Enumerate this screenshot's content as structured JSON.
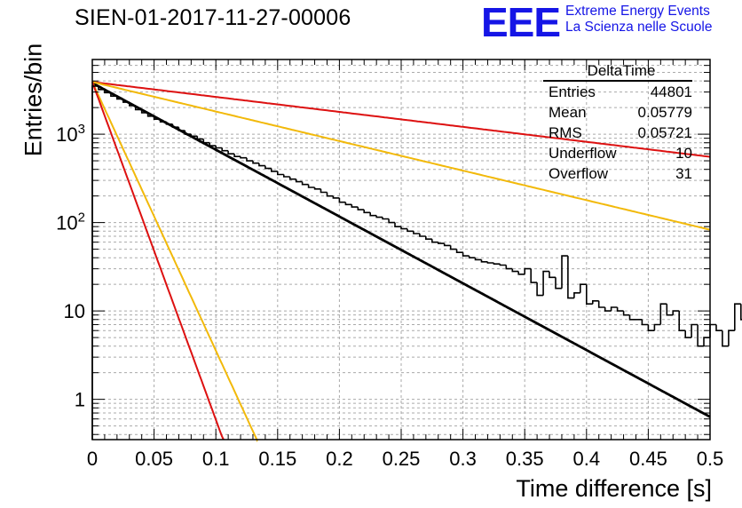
{
  "header": {
    "title": "SIEN-01-2017-11-27-00006",
    "logo_text": "EEE",
    "org_line1": "Extreme Energy Events",
    "org_line2": "La Scienza nelle Scuole",
    "brand_color": "#1515e6"
  },
  "stats": {
    "name": "DeltaTime",
    "rows": [
      {
        "label": "Entries",
        "value": "44801"
      },
      {
        "label": "Mean",
        "value": "0.05779"
      },
      {
        "label": "RMS",
        "value": "0.05721"
      },
      {
        "label": "Underflow",
        "value": "10"
      },
      {
        "label": "Overflow",
        "value": "31"
      }
    ]
  },
  "chart_data": {
    "type": "line",
    "title": "SIEN-01-2017-11-27-00006",
    "xlabel": "Time difference [s]",
    "ylabel": "Entries/bin",
    "xlim": [
      0,
      0.5
    ],
    "ylim": [
      0.35,
      7000
    ],
    "yscale": "log",
    "grid": true,
    "x_ticks": [
      "0",
      "0.05",
      "0.1",
      "0.15",
      "0.2",
      "0.25",
      "0.3",
      "0.35",
      "0.4",
      "0.45",
      "0.5"
    ],
    "y_ticks": [
      {
        "value": 1,
        "label": "1"
      },
      {
        "value": 10,
        "label": "10"
      },
      {
        "value": 100,
        "label": "10^2"
      },
      {
        "value": 1000,
        "label": "10^3"
      }
    ],
    "histogram": {
      "name": "DeltaTime",
      "bin_width": 0.005,
      "color": "#000000",
      "counts": [
        3500,
        3200,
        2950,
        2700,
        2500,
        2300,
        2100,
        1900,
        1750,
        1600,
        1480,
        1380,
        1300,
        1200,
        1100,
        1000,
        950,
        880,
        800,
        740,
        700,
        650,
        600,
        560,
        540,
        500,
        470,
        440,
        410,
        380,
        350,
        330,
        310,
        290,
        270,
        250,
        240,
        220,
        200,
        190,
        170,
        160,
        150,
        140,
        130,
        120,
        115,
        110,
        100,
        90,
        85,
        80,
        75,
        70,
        65,
        60,
        58,
        55,
        50,
        46,
        42,
        40,
        38,
        36,
        35,
        34,
        33,
        30,
        28,
        26,
        30,
        21,
        15,
        28,
        24,
        18,
        42,
        14,
        16,
        20,
        12,
        13,
        11,
        10,
        11,
        10,
        9,
        8,
        8,
        7,
        6,
        7,
        12,
        9,
        10,
        6,
        5,
        7,
        4,
        5,
        7,
        6,
        4,
        6,
        12,
        8,
        4,
        2,
        12,
        5,
        3,
        2,
        3,
        9,
        4,
        6,
        3,
        2,
        2,
        2,
        1,
        7,
        2,
        10,
        2,
        7,
        4,
        4,
        1,
        3,
        2,
        1,
        1,
        2,
        1,
        1,
        2,
        1,
        2,
        2,
        1,
        1,
        1,
        1,
        2,
        0.2,
        1,
        2,
        1,
        1,
        0.2,
        1,
        0.2,
        2,
        1,
        0.2,
        1,
        1,
        1,
        1,
        1,
        1,
        0.2,
        1,
        0.2,
        1
      ]
    },
    "series": [
      {
        "name": "fit",
        "color": "#000000",
        "a": 3800,
        "b": -17.4
      },
      {
        "name": "upper-red",
        "color": "#dd1111",
        "a": 3900,
        "b": -3.9
      },
      {
        "name": "upper-yellow",
        "color": "#f2b90a",
        "a": 3900,
        "b": -7.7
      },
      {
        "name": "lower-yellow",
        "color": "#f2b90a",
        "a": 3900,
        "b": -70
      },
      {
        "name": "lower-red",
        "color": "#dd1111",
        "a": 3900,
        "b": -88
      }
    ]
  }
}
